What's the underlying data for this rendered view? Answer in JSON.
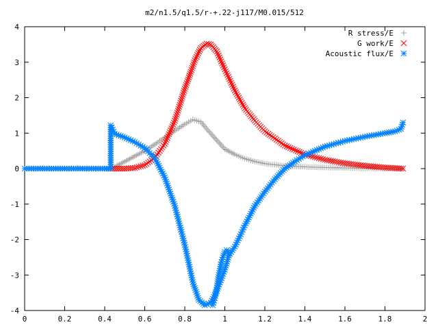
{
  "chart_data": {
    "type": "scatter",
    "title": "m2/n1.5/q1.5/r-+.22-j117/M0.015/512",
    "xlim": [
      0,
      2
    ],
    "ylim": [
      -4,
      4
    ],
    "xticks": [
      0,
      0.2,
      0.4,
      0.6,
      0.8,
      1,
      1.2,
      1.4,
      1.6,
      1.8,
      2
    ],
    "xtick_labels": [
      "0",
      "0.2",
      "0.4",
      "0.6",
      "0.8",
      "1",
      "1.2",
      "1.4",
      "1.6",
      "1.8",
      "2"
    ],
    "yticks": [
      -4,
      -3,
      -2,
      -1,
      0,
      1,
      2,
      3,
      4
    ],
    "ytick_labels": [
      "-4",
      "-3",
      "-2",
      "-1",
      "0",
      "1",
      "2",
      "3",
      "4"
    ],
    "grid": false,
    "legend_position": "top-right",
    "series": [
      {
        "name": "R stress/E",
        "marker": "plus",
        "color": "#a0a0a0",
        "x": [
          0.43,
          0.45,
          0.5,
          0.55,
          0.6,
          0.65,
          0.7,
          0.75,
          0.8,
          0.84,
          0.88,
          0.92,
          0.96,
          1.0,
          1.05,
          1.1,
          1.15,
          1.2,
          1.3,
          1.4,
          1.5,
          1.6,
          1.7,
          1.8,
          1.89
        ],
        "y": [
          0.0,
          0.05,
          0.2,
          0.35,
          0.5,
          0.68,
          0.88,
          1.07,
          1.25,
          1.38,
          1.32,
          1.05,
          0.8,
          0.55,
          0.4,
          0.28,
          0.2,
          0.14,
          0.08,
          0.05,
          0.03,
          0.02,
          0.01,
          0.0,
          0.0
        ]
      },
      {
        "name": "G work/E",
        "marker": "cross",
        "color": "#ff0000",
        "x": [
          0.43,
          0.5,
          0.55,
          0.6,
          0.65,
          0.7,
          0.75,
          0.8,
          0.85,
          0.88,
          0.91,
          0.93,
          0.96,
          1.0,
          1.05,
          1.1,
          1.15,
          1.2,
          1.3,
          1.4,
          1.5,
          1.6,
          1.7,
          1.8,
          1.89
        ],
        "y": [
          0.0,
          0.0,
          0.02,
          0.1,
          0.3,
          0.7,
          1.35,
          2.25,
          3.05,
          3.4,
          3.52,
          3.5,
          3.3,
          2.8,
          2.2,
          1.7,
          1.35,
          1.05,
          0.65,
          0.4,
          0.25,
          0.15,
          0.08,
          0.03,
          0.0
        ]
      },
      {
        "name": "Acoustic flux/E",
        "marker": "star",
        "color": "#0080ff",
        "x": [
          0.0,
          0.1,
          0.2,
          0.3,
          0.4,
          0.43,
          0.43,
          0.45,
          0.5,
          0.55,
          0.6,
          0.65,
          0.7,
          0.75,
          0.8,
          0.84,
          0.87,
          0.9,
          0.93,
          0.96,
          1.0,
          1.02,
          1.05,
          1.08,
          1.1,
          1.15,
          1.2,
          1.25,
          1.3,
          1.35,
          1.4,
          1.45,
          1.5,
          1.6,
          1.7,
          1.8,
          1.85,
          1.88,
          1.89
        ],
        "y": [
          0.0,
          0.0,
          0.0,
          0.0,
          0.0,
          0.0,
          1.22,
          0.98,
          0.88,
          0.75,
          0.58,
          0.3,
          -0.25,
          -1.05,
          -2.15,
          -3.2,
          -3.7,
          -3.85,
          -3.78,
          -3.45,
          -2.85,
          -2.45,
          -2.2,
          -1.85,
          -1.6,
          -1.05,
          -0.65,
          -0.3,
          0.0,
          0.2,
          0.38,
          0.5,
          0.62,
          0.78,
          0.9,
          1.0,
          1.05,
          1.12,
          1.3
        ]
      },
      {
        "name": "Acoustic flux/E",
        "marker": "star",
        "color": "#0080ff",
        "x": [
          0.94,
          0.95,
          0.96,
          0.97,
          0.98,
          0.99,
          1.0,
          1.01,
          1.02
        ],
        "y": [
          -3.85,
          -3.65,
          -3.35,
          -3.0,
          -2.7,
          -2.5,
          -2.35,
          -2.3,
          -2.4
        ]
      }
    ]
  }
}
